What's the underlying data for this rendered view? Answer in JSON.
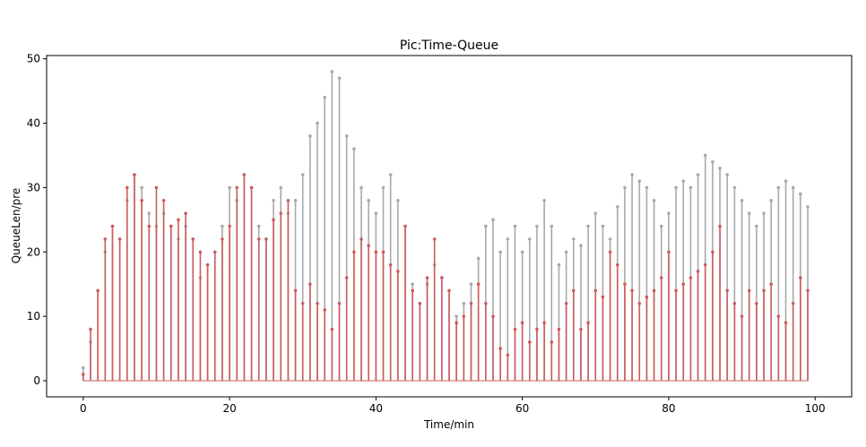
{
  "chart_data": {
    "type": "stem",
    "title": "Pic:Time-Queue",
    "xlabel": "Time/min",
    "ylabel": "QueueLen/pre",
    "xlim": [
      -5,
      105
    ],
    "ylim": [
      -2.5,
      50.5
    ],
    "xticks": [
      0,
      20,
      40,
      60,
      80,
      100
    ],
    "yticks": [
      0,
      10,
      20,
      30,
      40,
      50
    ],
    "grid": false,
    "legend": "none",
    "colors": {
      "queue": "#a9a9a9",
      "pre": "#cd5c5c"
    },
    "series": [
      {
        "key": "queue",
        "color": "#a9a9a9",
        "x": [
          0,
          1,
          2,
          3,
          4,
          5,
          6,
          7,
          8,
          9,
          10,
          11,
          12,
          13,
          14,
          15,
          16,
          17,
          18,
          19,
          20,
          21,
          22,
          23,
          24,
          25,
          26,
          27,
          28,
          29,
          30,
          31,
          32,
          33,
          34,
          35,
          36,
          37,
          38,
          39,
          40,
          41,
          42,
          43,
          44,
          45,
          46,
          47,
          48,
          49,
          50,
          51,
          52,
          53,
          54,
          55,
          56,
          57,
          58,
          59,
          60,
          61,
          62,
          63,
          64,
          65,
          66,
          67,
          68,
          69,
          70,
          71,
          72,
          73,
          74,
          75,
          76,
          77,
          78,
          79,
          80,
          81,
          82,
          83,
          84,
          85,
          86,
          87,
          88,
          89,
          90,
          91,
          92,
          93,
          94,
          95,
          96,
          97,
          98,
          99
        ],
        "values": [
          2,
          6,
          14,
          20,
          24,
          22,
          28,
          32,
          30,
          26,
          24,
          26,
          24,
          22,
          24,
          22,
          16,
          18,
          20,
          24,
          30,
          28,
          32,
          30,
          24,
          22,
          28,
          30,
          26,
          28,
          32,
          38,
          40,
          44,
          48,
          47,
          38,
          36,
          30,
          28,
          26,
          30,
          32,
          28,
          24,
          15,
          12,
          15,
          18,
          16,
          14,
          10,
          12,
          15,
          19,
          24,
          25,
          20,
          22,
          24,
          20,
          22,
          24,
          28,
          24,
          18,
          20,
          22,
          21,
          24,
          26,
          24,
          22,
          27,
          30,
          32,
          31,
          30,
          28,
          24,
          26,
          30,
          31,
          30,
          32,
          35,
          34,
          33,
          32,
          30,
          28,
          26,
          24,
          26,
          28,
          30,
          31,
          30,
          29,
          27
        ]
      },
      {
        "key": "pre",
        "color": "#cd5c5c",
        "x": [
          0,
          1,
          2,
          3,
          4,
          5,
          6,
          7,
          8,
          9,
          10,
          11,
          12,
          13,
          14,
          15,
          16,
          17,
          18,
          19,
          20,
          21,
          22,
          23,
          24,
          25,
          26,
          27,
          28,
          29,
          30,
          31,
          32,
          33,
          34,
          35,
          36,
          37,
          38,
          39,
          40,
          41,
          42,
          43,
          44,
          45,
          46,
          47,
          48,
          49,
          50,
          51,
          52,
          53,
          54,
          55,
          56,
          57,
          58,
          59,
          60,
          61,
          62,
          63,
          64,
          65,
          66,
          67,
          68,
          69,
          70,
          71,
          72,
          73,
          74,
          75,
          76,
          77,
          78,
          79,
          80,
          81,
          82,
          83,
          84,
          85,
          86,
          87,
          88,
          89,
          90,
          91,
          92,
          93,
          94,
          95,
          96,
          97,
          98,
          99
        ],
        "values": [
          1,
          8,
          14,
          22,
          24,
          22,
          30,
          32,
          28,
          24,
          30,
          28,
          24,
          25,
          26,
          22,
          20,
          18,
          20,
          22,
          24,
          30,
          32,
          30,
          22,
          22,
          25,
          26,
          28,
          14,
          12,
          15,
          12,
          11,
          8,
          12,
          16,
          20,
          22,
          21,
          20,
          20,
          18,
          17,
          24,
          14,
          12,
          16,
          22,
          16,
          14,
          9,
          10,
          12,
          15,
          12,
          10,
          5,
          4,
          8,
          9,
          6,
          8,
          9,
          6,
          8,
          12,
          14,
          8,
          9,
          14,
          13,
          20,
          18,
          15,
          14,
          12,
          13,
          14,
          16,
          20,
          14,
          15,
          16,
          17,
          18,
          20,
          24,
          14,
          12,
          10,
          14,
          12,
          14,
          15,
          10,
          9,
          12,
          16,
          14
        ]
      }
    ]
  }
}
